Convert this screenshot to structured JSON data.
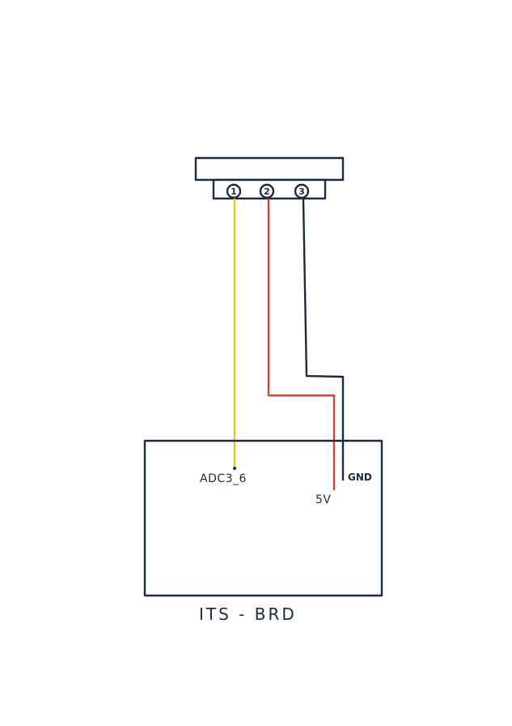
{
  "connector": {
    "pins": [
      "1",
      "2",
      "3"
    ]
  },
  "wires": [
    {
      "pin": "1",
      "color": "#f2c21a",
      "target": "ADC3_6"
    },
    {
      "pin": "2",
      "color": "#d9432f",
      "target": "5V"
    },
    {
      "pin": "3",
      "color": "#1b2a44",
      "target": "GND"
    }
  ],
  "board": {
    "name": "ITS - BRD",
    "labels": {
      "adc": "ADC3_6",
      "vcc": "5V",
      "gnd": "GND"
    }
  },
  "colors": {
    "ink": "#1b2a44",
    "yellow_wire": "#f2c21a",
    "red_wire": "#d9432f",
    "background": "#ffffff"
  }
}
